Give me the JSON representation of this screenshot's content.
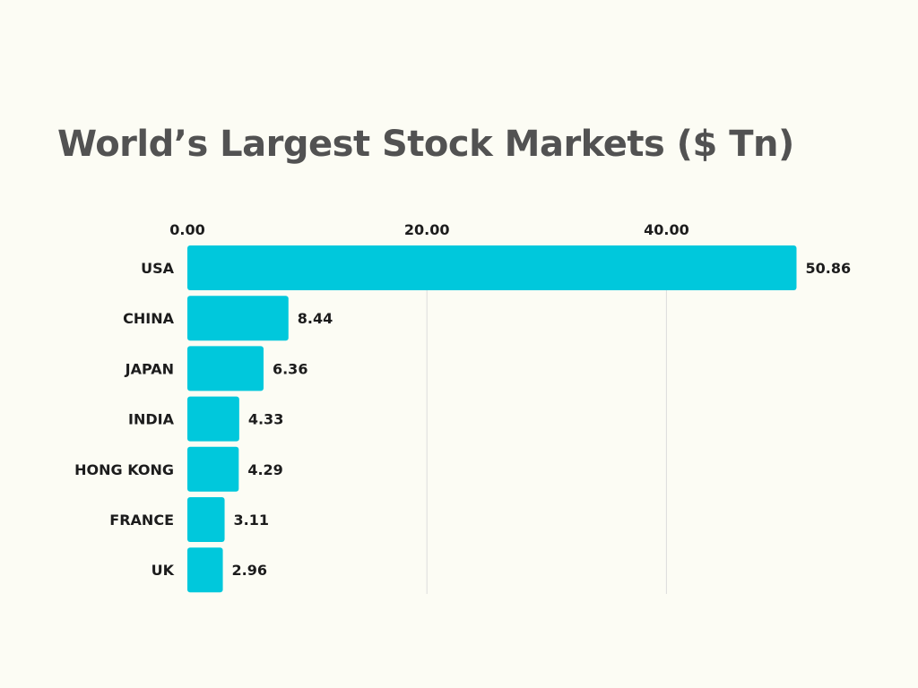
{
  "chart_data": {
    "type": "bar",
    "orientation": "horizontal",
    "title": "World’s Largest Stock Markets ($ Tn)",
    "categories": [
      "USA",
      "CHINA",
      "JAPAN",
      "INDIA",
      "HONG KONG",
      "FRANCE",
      "UK"
    ],
    "values": [
      50.86,
      8.44,
      6.36,
      4.33,
      4.29,
      3.11,
      2.96
    ],
    "data_labels": [
      "50.86",
      "8.44",
      "6.36",
      "4.33",
      "4.29",
      "3.11",
      "2.96"
    ],
    "x_ticks": [
      0,
      20,
      40
    ],
    "x_tick_labels": [
      "0.00",
      "20.00",
      "40.00"
    ],
    "xlim": [
      0,
      60
    ],
    "x_axis_position": "top",
    "grid": true,
    "colors": {
      "bar": "#00c8dc",
      "grid": "#dcdcdc",
      "title": "#525252",
      "text": "#1c1c1c",
      "background": "#fcfcf4"
    }
  }
}
